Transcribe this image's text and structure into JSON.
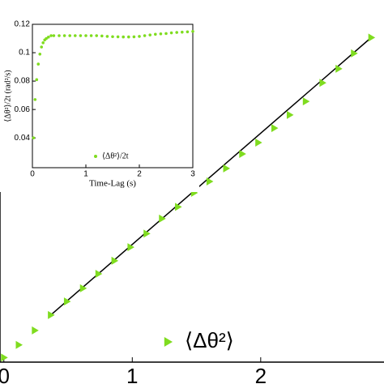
{
  "chart_data": [
    {
      "type": "scatter",
      "marker": "triangle",
      "color": "#7fdc1f",
      "xlim": [
        -0.03,
        2.96
      ],
      "xticks": [
        0,
        1,
        2
      ],
      "ylim": [
        0,
        0.8
      ],
      "series": [
        {
          "name": "⟨Δθ²⟩",
          "color": "#7fdc1f",
          "x": [
            0,
            0.115,
            0.24,
            0.365,
            0.49,
            0.615,
            0.735,
            0.86,
            0.985,
            1.11,
            1.23,
            1.355,
            1.48,
            1.6,
            1.73,
            1.855,
            1.98,
            2.105,
            2.225,
            2.35,
            2.48,
            2.605,
            2.725,
            2.86
          ],
          "values": [
            0.01,
            0.038,
            0.07,
            0.104,
            0.134,
            0.163,
            0.195,
            0.224,
            0.254,
            0.284,
            0.317,
            0.343,
            0.374,
            0.399,
            0.428,
            0.46,
            0.485,
            0.517,
            0.546,
            0.576,
            0.617,
            0.648,
            0.682,
            0.717
          ]
        }
      ],
      "fit_line": {
        "color": "#000000",
        "x": [
          0.365,
          2.86
        ],
        "values": [
          0.104,
          0.717
        ]
      }
    },
    {
      "type": "scatter",
      "marker": "dot",
      "xlabel": "Time-Lag (s)",
      "ylabel": "⟨Δθ²⟩/2t (rad²/s)",
      "xlim": [
        0,
        3
      ],
      "xticks": [
        0,
        1,
        2,
        3
      ],
      "ylim": [
        0.019,
        0.12
      ],
      "yticks": [
        0.04,
        0.06,
        0.08,
        0.1,
        0.12
      ],
      "series": [
        {
          "name": "⟨Δθ²⟩/2t",
          "color": "#7fdc1f",
          "x": [
            0.02,
            0.05,
            0.08,
            0.11,
            0.14,
            0.17,
            0.2,
            0.23,
            0.26,
            0.3,
            0.35,
            0.4,
            0.5,
            0.6,
            0.7,
            0.8,
            0.9,
            1,
            1.1,
            1.2,
            1.3,
            1.4,
            1.5,
            1.6,
            1.7,
            1.8,
            1.9,
            2,
            2.1,
            2.2,
            2.3,
            2.4,
            2.5,
            2.6,
            2.7,
            2.8,
            2.9,
            3
          ],
          "values": [
            0.04,
            0.067,
            0.081,
            0.092,
            0.099,
            0.104,
            0.107,
            0.109,
            0.11,
            0.111,
            0.112,
            0.112,
            0.112,
            0.112,
            0.112,
            0.112,
            0.112,
            0.112,
            0.112,
            0.112,
            0.1118,
            0.1115,
            0.1113,
            0.1112,
            0.1111,
            0.1111,
            0.1112,
            0.1115,
            0.112,
            0.1125,
            0.113,
            0.1133,
            0.1135,
            0.114,
            0.1143,
            0.1145,
            0.1147,
            0.115
          ]
        }
      ]
    }
  ]
}
